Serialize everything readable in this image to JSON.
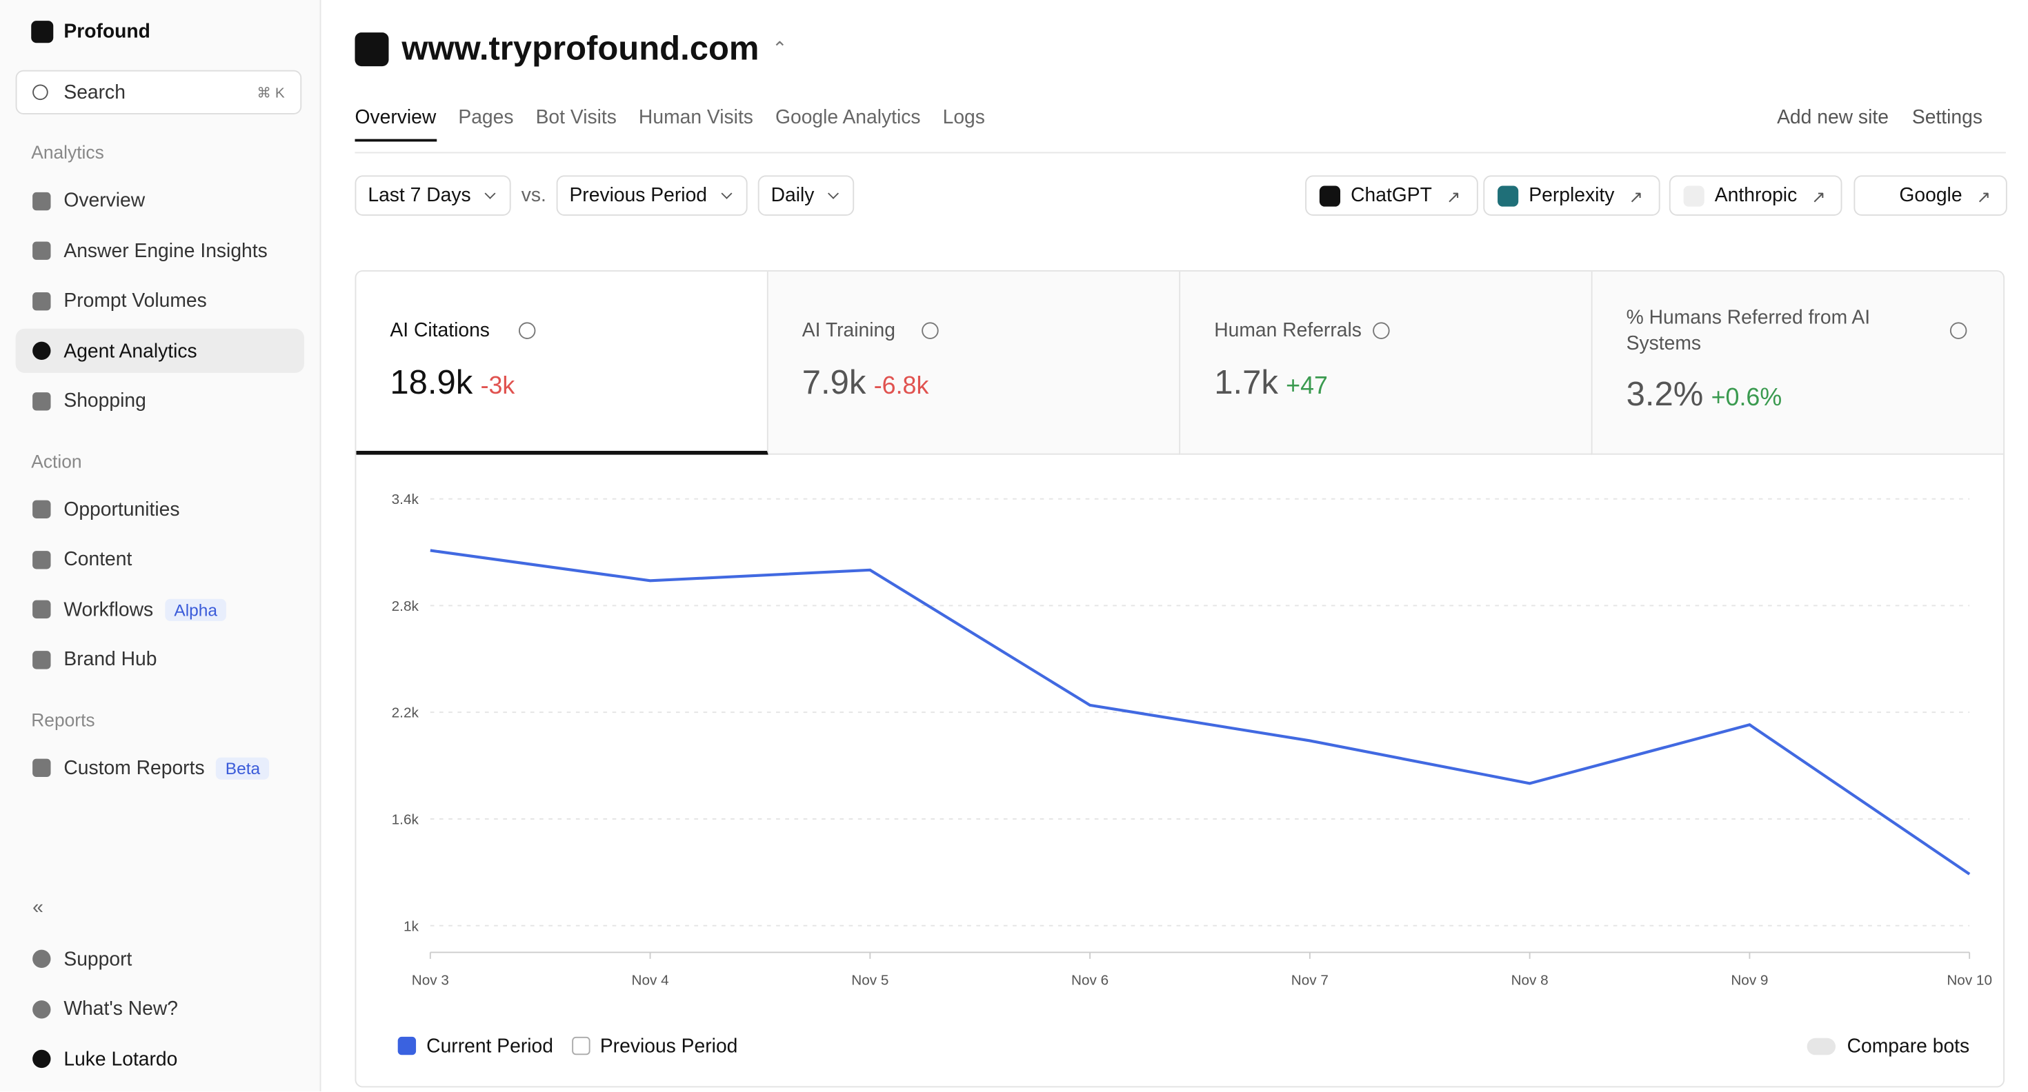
{
  "sidebar": {
    "workspace": "Profound",
    "search": "Search",
    "shortcut": "⌘ K",
    "sections": [
      {
        "title": "Analytics",
        "items": [
          {
            "label": "Overview"
          },
          {
            "label": "Answer Engine Insights"
          },
          {
            "label": "Prompt Volumes"
          },
          {
            "label": "Agent Analytics"
          },
          {
            "label": "Shopping"
          }
        ]
      },
      {
        "title": "Action",
        "items": [
          {
            "label": "Opportunities"
          },
          {
            "label": "Content"
          },
          {
            "label": "Workflows",
            "badge": "Alpha"
          },
          {
            "label": "Brand Hub"
          }
        ]
      },
      {
        "title": "Reports",
        "items": [
          {
            "label": "Custom Reports",
            "badge": "Beta"
          }
        ]
      }
    ],
    "footer": [
      "Support",
      "What's New?"
    ],
    "user": "Luke Lotardo"
  },
  "header": {
    "site": "www.tryprofound.com",
    "tabs": [
      "Overview",
      "Pages",
      "Bot Visits",
      "Human Visits",
      "Google Analytics",
      "Logs"
    ],
    "actions": [
      "Add new site",
      "Settings"
    ]
  },
  "filters": {
    "range": "Last 7 Days",
    "vs": "vs.",
    "compare": "Previous Period",
    "interval": "Daily",
    "engines": [
      "ChatGPT",
      "Perplexity",
      "Anthropic",
      "Google"
    ]
  },
  "metrics": [
    {
      "label": "AI Citations",
      "value": "18.9k",
      "change": "-3k"
    },
    {
      "label": "AI Training",
      "value": "7.9k",
      "change": "-6.8k"
    },
    {
      "label": "Human Referrals",
      "value": "1.7k",
      "change": "+47"
    },
    {
      "label": "% Humans Referred from AI Systems",
      "value": "3.2%",
      "change": "+0.6%"
    }
  ],
  "chart_data": {
    "type": "line",
    "categories": [
      "Nov 3",
      "Nov 4",
      "Nov 5",
      "Nov 6",
      "Nov 7",
      "Nov 8",
      "Nov 9",
      "Nov 10"
    ],
    "series": [
      {
        "name": "Current Period",
        "color": "#4169e1",
        "values": [
          3110,
          2940,
          3000,
          2240,
          2040,
          1800,
          2130,
          1290
        ]
      }
    ],
    "legend_items": [
      "Current Period",
      "Previous Period"
    ],
    "toggle": "Compare bots",
    "ylim": [
      850,
      3400
    ],
    "yticks": [
      {
        "value": 1000,
        "label": "1k"
      },
      {
        "value": 1600,
        "label": "1.6k"
      },
      {
        "value": 2200,
        "label": "2.2k"
      },
      {
        "value": 2800,
        "label": "2.8k"
      },
      {
        "value": 3400,
        "label": "3.4k"
      }
    ],
    "grid": true
  }
}
